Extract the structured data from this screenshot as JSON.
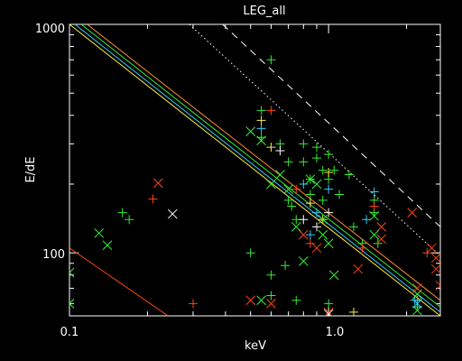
{
  "chart_data": {
    "type": "scatter",
    "title": "LEG_all",
    "xlabel": "keV",
    "ylabel": "E/dE",
    "xscale": "log",
    "yscale": "log",
    "xlim": [
      0.1,
      2.7
    ],
    "ylim": [
      53,
      1000
    ],
    "grid": false,
    "x_ticks": [
      "0.1",
      "1.0"
    ],
    "y_ticks": [
      "100",
      "1000"
    ],
    "colors": {
      "background": "#000000",
      "axes": "#ffffff",
      "green": "#33ee33",
      "lightgreen": "#88ff88",
      "red": "#ff4411",
      "orange": "#ff8833",
      "cyan": "#33ccff",
      "yellow": "#ffee44",
      "white": "#ffffff"
    },
    "lines": [
      {
        "style": "solid",
        "color": "red",
        "points": [
          [
            0.1,
            105
          ],
          [
            0.24,
            53
          ]
        ]
      },
      {
        "style": "solid",
        "color": "yellow",
        "points": [
          [
            0.1,
            1000
          ],
          [
            2.7,
            53
          ]
        ]
      },
      {
        "style": "solid",
        "color": "cyan",
        "points": [
          [
            0.105,
            1000
          ],
          [
            2.7,
            55
          ]
        ]
      },
      {
        "style": "solid",
        "color": "green",
        "points": [
          [
            0.111,
            1000
          ],
          [
            2.7,
            58
          ]
        ]
      },
      {
        "style": "solid",
        "color": "orange",
        "points": [
          [
            0.117,
            1000
          ],
          [
            2.7,
            62
          ]
        ]
      },
      {
        "style": "dotted",
        "color": "white",
        "points": [
          [
            0.29,
            1000
          ],
          [
            2.7,
            97
          ]
        ]
      },
      {
        "style": "dashed",
        "color": "white",
        "points": [
          [
            0.39,
            1000
          ],
          [
            2.7,
            130
          ]
        ]
      }
    ],
    "series": [
      {
        "marker": "plus",
        "color": "green",
        "points": [
          [
            0.16,
            150
          ],
          [
            0.17,
            140
          ],
          [
            0.5,
            100
          ],
          [
            0.55,
            420
          ],
          [
            0.55,
            320
          ],
          [
            0.6,
            700
          ],
          [
            0.6,
            80
          ],
          [
            0.65,
            300
          ],
          [
            0.7,
            250
          ],
          [
            0.7,
            170
          ],
          [
            0.72,
            160
          ],
          [
            0.75,
            140
          ],
          [
            0.75,
            62
          ],
          [
            0.8,
            300
          ],
          [
            0.8,
            250
          ],
          [
            0.85,
            210
          ],
          [
            0.85,
            180
          ],
          [
            0.9,
            290
          ],
          [
            0.9,
            260
          ],
          [
            0.95,
            230
          ],
          [
            0.95,
            170
          ],
          [
            1.0,
            270
          ],
          [
            1.0,
            210
          ],
          [
            1.0,
            60
          ],
          [
            1.05,
            230
          ],
          [
            1.1,
            180
          ],
          [
            1.2,
            220
          ],
          [
            1.25,
            130
          ],
          [
            1.35,
            110
          ],
          [
            1.5,
            170
          ],
          [
            1.5,
            150
          ],
          [
            1.55,
            110
          ],
          [
            2.2,
            62
          ],
          [
            2.2,
            58
          ],
          [
            0.6,
            65
          ],
          [
            0.68,
            88
          ]
        ]
      },
      {
        "marker": "plus",
        "color": "red",
        "points": [
          [
            0.21,
            172
          ],
          [
            0.3,
            60
          ],
          [
            0.6,
            420
          ],
          [
            0.75,
            190
          ],
          [
            0.85,
            110
          ],
          [
            1.35,
            105
          ],
          [
            1.5,
            160
          ],
          [
            2.4,
            100
          ]
        ]
      },
      {
        "marker": "plus",
        "color": "cyan",
        "points": [
          [
            0.55,
            350
          ],
          [
            0.8,
            200
          ],
          [
            0.85,
            120
          ],
          [
            0.9,
            150
          ],
          [
            1.0,
            190
          ],
          [
            1.4,
            140
          ],
          [
            1.5,
            185
          ],
          [
            2.15,
            62
          ]
        ]
      },
      {
        "marker": "plus",
        "color": "yellow",
        "points": [
          [
            0.55,
            380
          ],
          [
            0.6,
            290
          ],
          [
            0.85,
            165
          ],
          [
            0.95,
            140
          ],
          [
            1.0,
            225
          ],
          [
            1.25,
            55
          ]
        ]
      },
      {
        "marker": "plus",
        "color": "white",
        "points": [
          [
            0.65,
            280
          ],
          [
            0.8,
            140
          ],
          [
            0.9,
            130
          ],
          [
            1.0,
            150
          ]
        ]
      },
      {
        "marker": "x",
        "color": "green",
        "points": [
          [
            0.1,
            82
          ],
          [
            0.1,
            60
          ],
          [
            0.13,
            122
          ],
          [
            0.14,
            108
          ],
          [
            0.5,
            340
          ],
          [
            0.55,
            310
          ],
          [
            0.55,
            62
          ],
          [
            0.6,
            200
          ],
          [
            0.65,
            220
          ],
          [
            0.7,
            190
          ],
          [
            0.75,
            130
          ],
          [
            0.8,
            92
          ],
          [
            0.85,
            210
          ],
          [
            0.9,
            200
          ],
          [
            0.95,
            140
          ],
          [
            0.95,
            120
          ],
          [
            1.0,
            110
          ],
          [
            1.05,
            80
          ],
          [
            1.5,
            145
          ],
          [
            1.5,
            120
          ],
          [
            2.2,
            66
          ],
          [
            2.2,
            56
          ]
        ]
      },
      {
        "marker": "x",
        "color": "red",
        "points": [
          [
            0.22,
            202
          ],
          [
            0.5,
            62
          ],
          [
            0.6,
            60
          ],
          [
            0.8,
            120
          ],
          [
            0.9,
            105
          ],
          [
            1.3,
            85
          ],
          [
            1.6,
            130
          ],
          [
            1.6,
            115
          ],
          [
            2.1,
            150
          ],
          [
            2.5,
            105
          ],
          [
            2.6,
            95
          ],
          [
            2.6,
            85
          ],
          [
            2.7,
            72
          ],
          [
            1.0,
            55
          ],
          [
            2.2,
            70
          ]
        ]
      },
      {
        "marker": "x",
        "color": "white",
        "points": [
          [
            0.25,
            148
          ],
          [
            1.0,
            54
          ]
        ]
      },
      {
        "marker": "x",
        "color": "cyan",
        "points": [
          [
            2.2,
            60
          ]
        ]
      }
    ]
  }
}
